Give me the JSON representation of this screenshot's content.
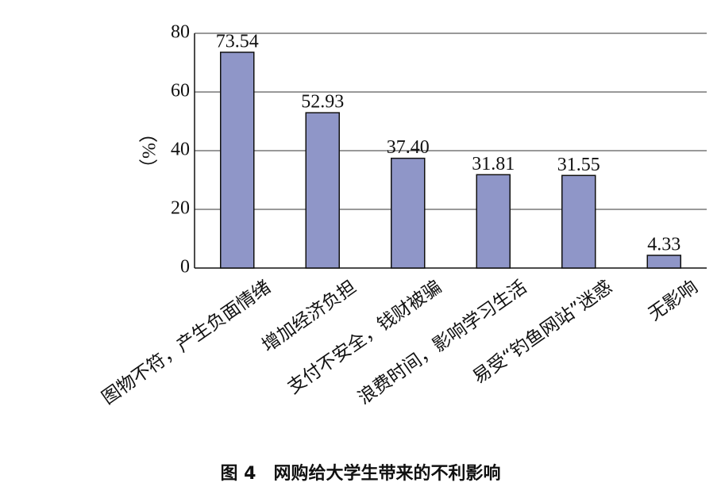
{
  "chart_data": {
    "type": "bar",
    "title": "图 4　网购给大学生带来的不利影响",
    "y_label": "（%）",
    "categories": [
      "图物不符，产生负面情绪",
      "增加经济负担",
      "支付不安全，钱财被骗",
      "浪费时间，影响学习生活",
      "易受“钓鱼网站”迷惑",
      "无影响"
    ],
    "values": [
      73.54,
      52.93,
      37.4,
      31.81,
      31.55,
      4.33
    ],
    "value_labels": [
      "73.54",
      "52.93",
      "37.40",
      "31.81",
      "31.55",
      "4.33"
    ],
    "color": "#8f96c8",
    "ylim": [
      0,
      80
    ],
    "yticks": [
      0,
      20,
      40,
      60,
      80
    ],
    "grid": true
  }
}
